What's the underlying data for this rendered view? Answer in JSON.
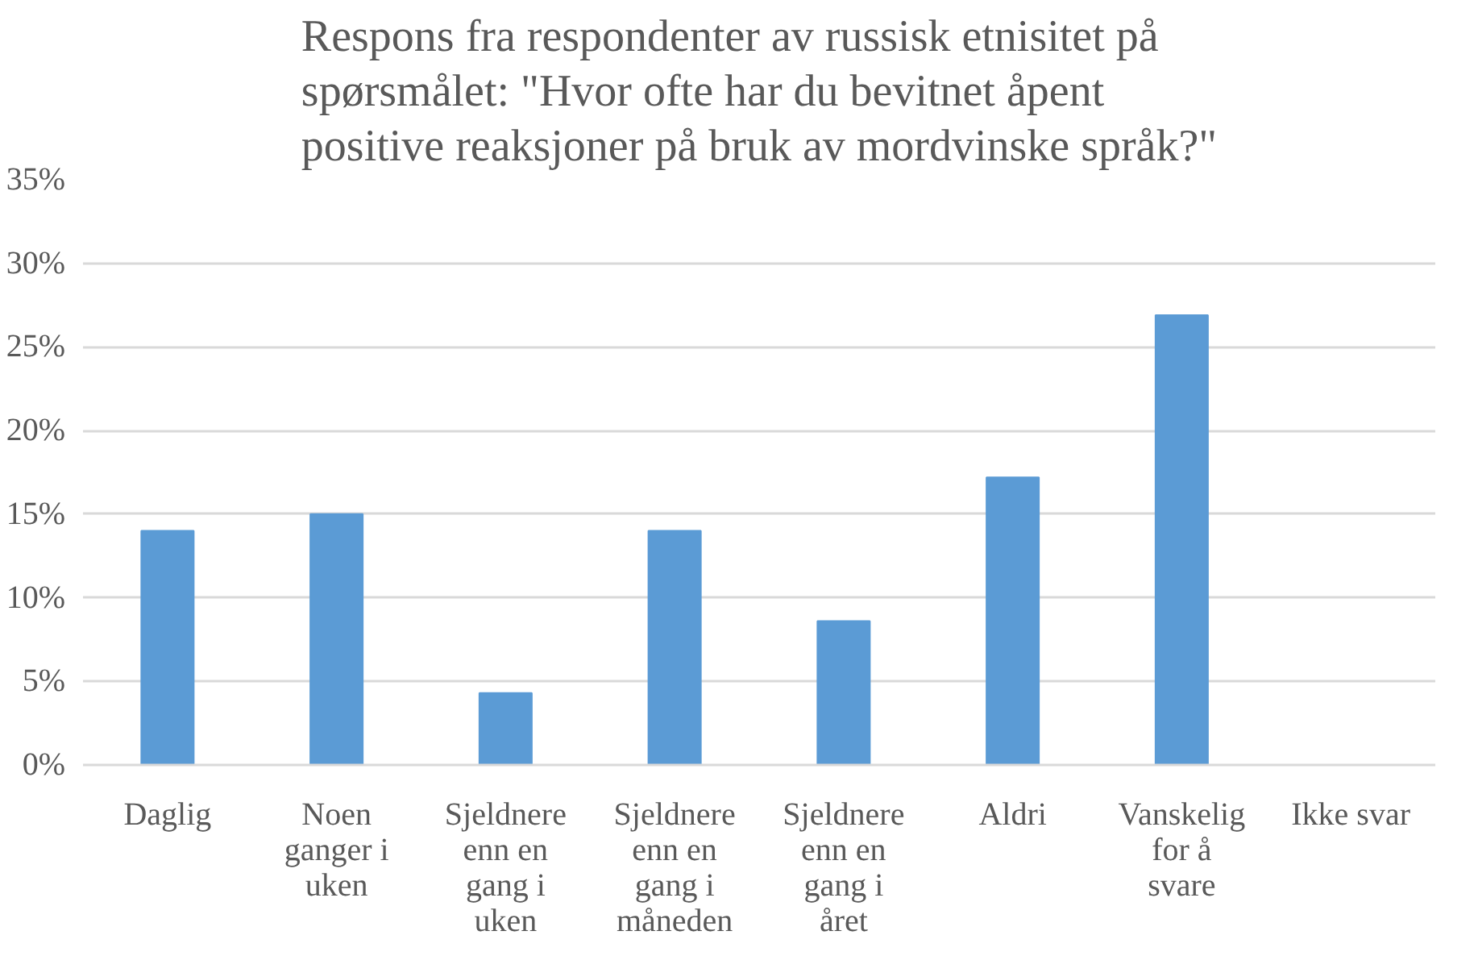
{
  "chart_data": {
    "type": "bar",
    "title": "Respons fra respondenter av russisk etnisitet på spørsmålet: \"Hvor ofte har du bevitnet åpent positive reaksjoner på bruk av mordvinske språk?\"",
    "categories": [
      "Daglig",
      "Noen ganger i uken",
      "Sjeldnere enn en gang i uken",
      "Sjeldnere enn en gang i måneden",
      "Sjeldnere enn en gang i året",
      "Aldri",
      "Vanskelig for å svare",
      "Ikke svar"
    ],
    "values": [
      14.0,
      15.0,
      4.3,
      14.0,
      8.6,
      17.2,
      26.9,
      0
    ],
    "color": "#5b9bd5",
    "ylim": [
      0,
      35
    ],
    "yticks": [
      {
        "value": 0,
        "label": "0%"
      },
      {
        "value": 5,
        "label": "5%"
      },
      {
        "value": 10,
        "label": "10%"
      },
      {
        "value": 15,
        "label": "15%"
      },
      {
        "value": 20,
        "label": "20%"
      },
      {
        "value": 25,
        "label": "25%"
      },
      {
        "value": 30,
        "label": "30%"
      },
      {
        "value": 35,
        "label": "35%"
      }
    ],
    "grid": "y"
  }
}
